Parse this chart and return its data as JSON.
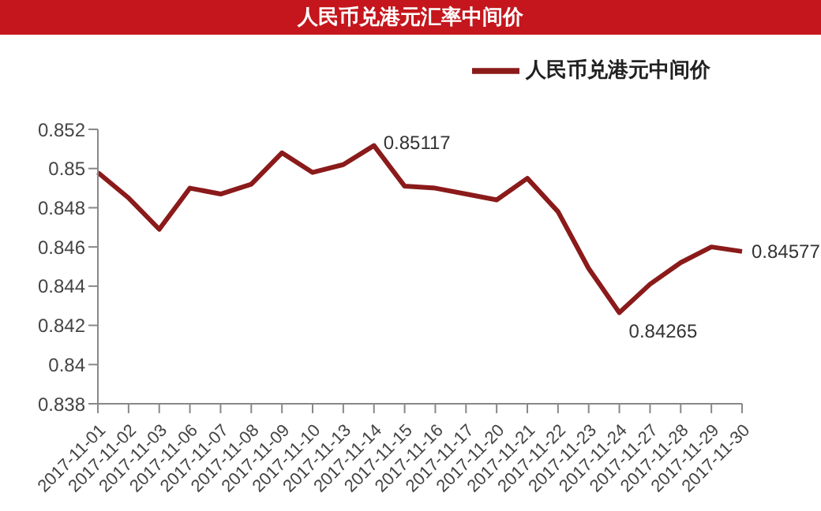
{
  "chart_data": {
    "type": "line",
    "title": "人民币兑港元汇率中间价",
    "categories": [
      "2017-11-01",
      "2017-11-02",
      "2017-11-03",
      "2017-11-06",
      "2017-11-07",
      "2017-11-08",
      "2017-11-09",
      "2017-11-10",
      "2017-11-13",
      "2017-11-14",
      "2017-11-15",
      "2017-11-16",
      "2017-11-17",
      "2017-11-20",
      "2017-11-21",
      "2017-11-22",
      "2017-11-23",
      "2017-11-24",
      "2017-11-27",
      "2017-11-28",
      "2017-11-29",
      "2017-11-30"
    ],
    "series": [
      {
        "name": "人民币兑港元中间价",
        "color": "#8b1a1a",
        "values": [
          0.8498,
          0.8485,
          0.8469,
          0.849,
          0.8487,
          0.8492,
          0.8508,
          0.8498,
          0.8502,
          0.85117,
          0.8491,
          0.849,
          0.8487,
          0.8484,
          0.8495,
          0.8478,
          0.8449,
          0.84265,
          0.8441,
          0.8452,
          0.846,
          0.84577
        ],
        "value_labels": [
          null,
          null,
          null,
          null,
          null,
          null,
          null,
          null,
          null,
          "0.85117",
          null,
          null,
          null,
          null,
          null,
          null,
          null,
          "0.84265",
          null,
          null,
          null,
          "0.84577"
        ]
      }
    ],
    "ylim": [
      0.838,
      0.852
    ],
    "yticks": [
      0.838,
      0.84,
      0.842,
      0.844,
      0.846,
      0.848,
      0.85,
      0.852
    ],
    "legend": "top right",
    "grid": false,
    "marker": "none",
    "line_style": "solid"
  }
}
